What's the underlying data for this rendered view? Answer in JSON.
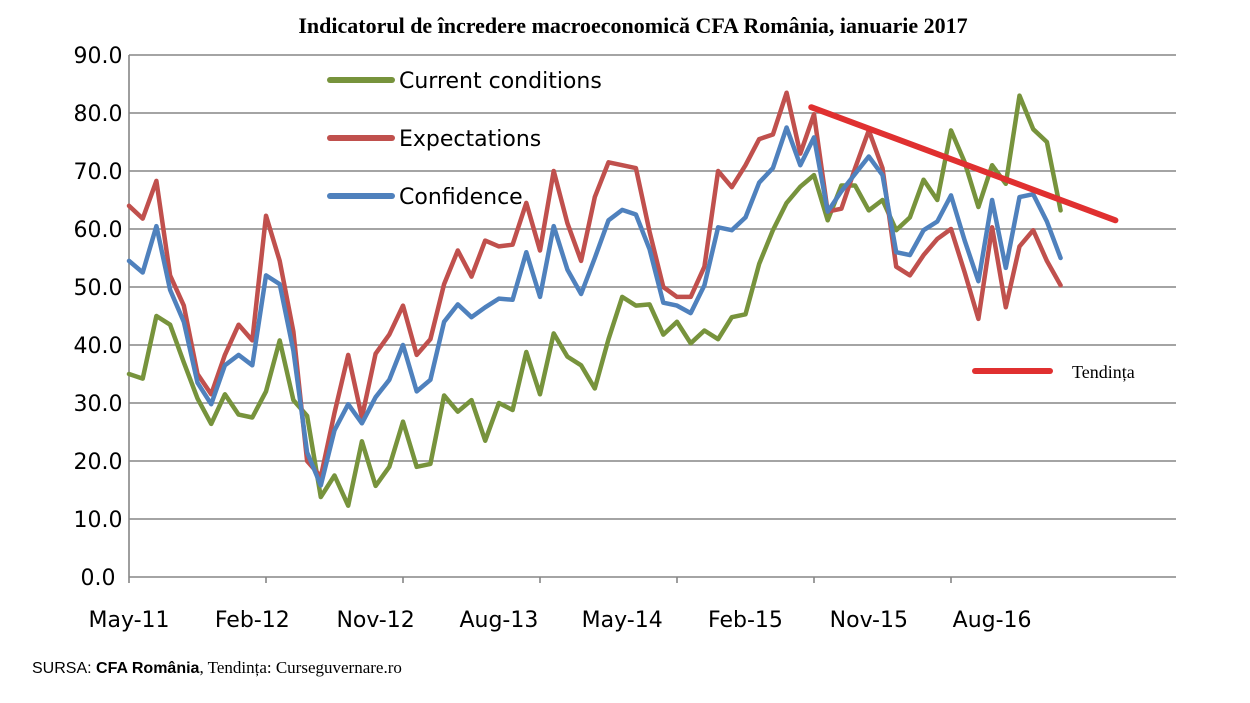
{
  "chart_data": {
    "type": "line",
    "title": "Indicatorul de încredere macroeconomică CFA România, ianuarie 2017",
    "xlabel": "",
    "ylabel": "",
    "ylim": [
      0,
      90
    ],
    "y_ticks": [
      "0.0",
      "10.0",
      "20.0",
      "30.0",
      "40.0",
      "50.0",
      "60.0",
      "70.0",
      "80.0",
      "90.0"
    ],
    "x_tick_labels": [
      "May-11",
      "Feb-12",
      "Nov-12",
      "Aug-13",
      "May-14",
      "Feb-15",
      "Nov-15",
      "Aug-16"
    ],
    "grid": "horizontal",
    "legend_placement": "top-left",
    "x": [
      "May-11",
      "Jun-11",
      "Jul-11",
      "Aug-11",
      "Sep-11",
      "Oct-11",
      "Nov-11",
      "Dec-11",
      "Jan-12",
      "Feb-12",
      "Mar-12",
      "Apr-12",
      "May-12",
      "Jun-12",
      "Jul-12",
      "Aug-12",
      "Sep-12",
      "Oct-12",
      "Nov-12",
      "Dec-12",
      "Jan-13",
      "Feb-13",
      "Mar-13",
      "Apr-13",
      "May-13",
      "Jun-13",
      "Jul-13",
      "Aug-13",
      "Sep-13",
      "Oct-13",
      "Nov-13",
      "Dec-13",
      "Jan-14",
      "Feb-14",
      "Mar-14",
      "Apr-14",
      "May-14",
      "Jun-14",
      "Jul-14",
      "Aug-14",
      "Sep-14",
      "Oct-14",
      "Nov-14",
      "Dec-14",
      "Jan-15",
      "Feb-15",
      "Mar-15",
      "Apr-15",
      "May-15",
      "Jun-15",
      "Jul-15",
      "Aug-15",
      "Sep-15",
      "Oct-15",
      "Nov-15",
      "Dec-15",
      "Jan-16",
      "Feb-16",
      "Mar-16",
      "Apr-16",
      "May-16",
      "Jun-16",
      "Jul-16",
      "Aug-16",
      "Sep-16",
      "Oct-16",
      "Nov-16",
      "Dec-16",
      "Jan-17"
    ],
    "series": [
      {
        "name": "Current conditions",
        "color": "#77933c",
        "values": [
          35.0,
          34.2,
          45.0,
          43.5,
          37.0,
          30.8,
          26.4,
          31.5,
          28.0,
          27.5,
          32.0,
          40.8,
          30.5,
          27.8,
          13.8,
          17.5,
          12.3,
          23.4,
          15.7,
          19.0,
          26.8,
          19.0,
          19.5,
          31.3,
          28.5,
          30.5,
          23.5,
          30.0,
          28.8,
          38.8,
          31.5,
          42.0,
          38.0,
          36.5,
          32.5,
          41.0,
          48.3,
          46.8,
          47.0,
          41.8,
          44.0,
          40.3,
          42.5,
          41.0,
          44.8,
          45.3,
          54.0,
          59.8,
          64.5,
          67.3,
          69.3,
          61.5,
          67.5,
          67.5,
          63.2,
          65.0,
          59.8,
          62.0,
          68.5,
          65.0,
          77.0,
          71.5,
          63.8,
          71.0,
          67.8,
          83.0,
          77.2,
          75.0,
          63.2
        ]
      },
      {
        "name": "Expectations",
        "color": "#c0504d",
        "values": [
          64.0,
          61.8,
          68.3,
          52.0,
          46.8,
          35.0,
          31.5,
          38.3,
          43.5,
          40.8,
          62.3,
          54.5,
          42.3,
          20.0,
          17.3,
          28.3,
          38.3,
          27.5,
          38.5,
          41.8,
          46.8,
          38.3,
          41.0,
          50.5,
          56.3,
          51.8,
          58.0,
          57.0,
          57.3,
          64.5,
          56.3,
          70.0,
          61.0,
          54.5,
          65.5,
          71.5,
          71.0,
          70.5,
          59.5,
          50.0,
          48.3,
          48.3,
          53.5,
          70.0,
          67.2,
          71.0,
          75.5,
          76.3,
          83.5,
          73.0,
          79.8,
          63.0,
          63.5,
          70.5,
          77.0,
          70.5,
          53.5,
          52.0,
          55.5,
          58.3,
          60.0,
          52.5,
          44.5,
          60.3,
          46.5,
          57.0,
          59.8,
          54.5,
          50.3
        ]
      },
      {
        "name": "Confidence",
        "color": "#4f81bd",
        "values": [
          54.5,
          52.5,
          60.5,
          49.5,
          44.0,
          33.5,
          29.8,
          36.5,
          38.3,
          36.5,
          52.0,
          50.5,
          39.0,
          21.5,
          15.8,
          25.3,
          29.8,
          26.5,
          31.0,
          34.0,
          40.0,
          32.0,
          34.0,
          44.0,
          47.0,
          44.8,
          46.5,
          48.0,
          47.8,
          56.0,
          48.3,
          60.5,
          53.0,
          48.8,
          55.0,
          61.5,
          63.3,
          62.5,
          56.5,
          47.3,
          46.8,
          45.5,
          50.3,
          60.3,
          59.8,
          62.0,
          68.0,
          70.5,
          77.5,
          71.0,
          75.8,
          63.0,
          66.5,
          69.5,
          72.5,
          69.3,
          56.0,
          55.5,
          59.8,
          61.3,
          65.8,
          58.0,
          51.0,
          65.0,
          53.3,
          65.5,
          66.0,
          61.3,
          55.0
        ]
      }
    ],
    "trend": {
      "name": "Tendința",
      "color": "#e03030",
      "x_start": 49.8,
      "y_start": 81.0,
      "x_end": 72.0,
      "y_end": 61.5
    }
  },
  "source": {
    "prefix": "SURSA: ",
    "org": "CFA România",
    "separator": ", ",
    "trend_credit": "Tendința: Curseguvernare.ro"
  }
}
